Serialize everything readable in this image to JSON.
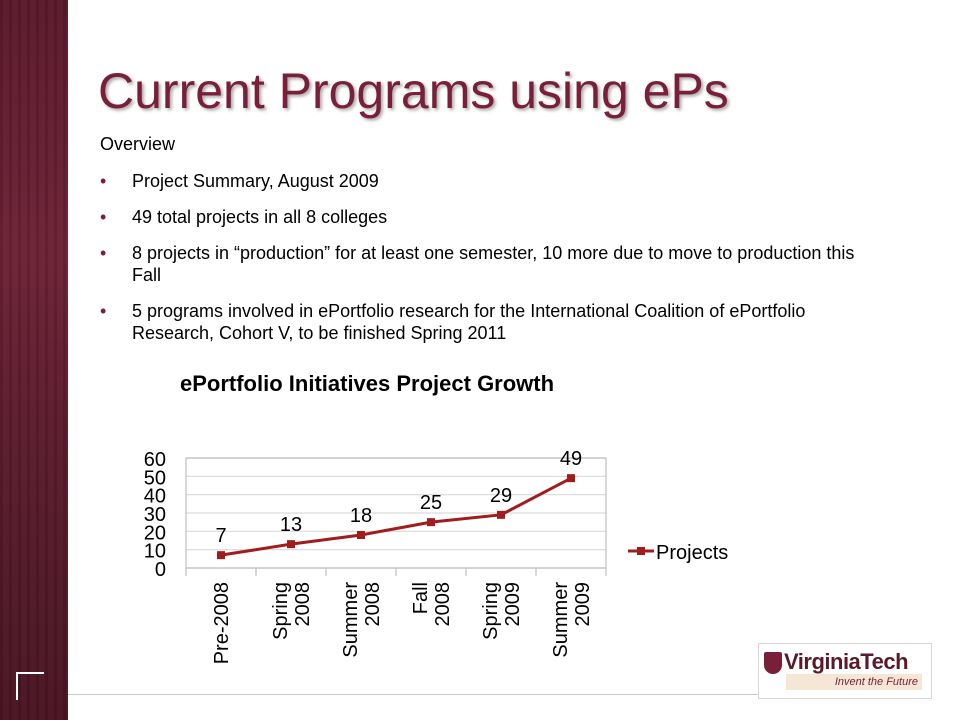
{
  "slide": {
    "title": "Current Programs using ePs",
    "overview": "Overview",
    "bullets": [
      "Project Summary, August 2009",
      "49 total projects in all 8 colleges",
      "8 projects in “production” for at least one semester, 10 more due to move to production this Fall",
      "5 programs involved in ePortfolio research for the International Coalition of ePortfolio Research, Cohort V, to be finished Spring 2011"
    ],
    "bullet_symbol": "•"
  },
  "logo": {
    "name": "VirginiaTech",
    "tagline": "Invent the Future"
  },
  "colors": {
    "accent": "#7a1f3a",
    "series": "#a11d1d",
    "band": "#5a1a2c"
  },
  "chart_data": {
    "type": "line",
    "title": "ePortfolio Initiatives Project Growth",
    "categories": [
      "Pre-2008",
      "Spring 2008",
      "Summer 2008",
      "Fall 2008",
      "Spring 2009",
      "Summer 2009"
    ],
    "series": [
      {
        "name": "Projects",
        "values": [
          7,
          13,
          18,
          25,
          29,
          49
        ]
      }
    ],
    "ylim": [
      0,
      60
    ],
    "yticks": [
      "0",
      "10",
      "20",
      "30",
      "40",
      "50",
      "60"
    ],
    "grid": true,
    "legend": "right",
    "data_labels": true
  }
}
